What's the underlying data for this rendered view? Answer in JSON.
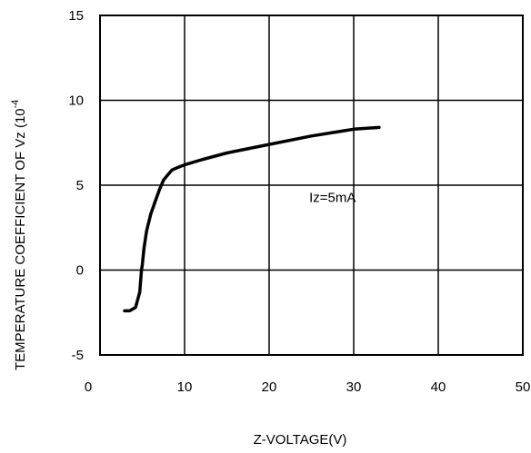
{
  "chart_data": {
    "type": "line",
    "xlabel": "Z-VOLTAGE(V)",
    "ylabel": "TEMPERATURE COEFFICIENT OF Vz (10",
    "ylabel_exponent": "-4",
    "xlim": [
      0,
      50
    ],
    "ylim": [
      -5,
      15
    ],
    "x_ticks": [
      "0",
      "10",
      "20",
      "30",
      "40",
      "50"
    ],
    "y_ticks": [
      "15",
      "10",
      "5",
      "0",
      "-5"
    ],
    "grid": true,
    "series": [
      {
        "x": [
          2.9,
          3.5,
          4.2,
          4.7,
          4.9,
          5.0,
          5.2,
          5.5,
          6.0,
          6.5,
          7.0,
          7.5,
          8.0,
          8.5,
          9.0,
          9.5,
          10,
          12,
          15,
          20,
          25,
          30,
          33
        ],
        "y": [
          -2.4,
          -2.4,
          -2.2,
          -1.3,
          0.0,
          0.3,
          1.3,
          2.3,
          3.3,
          4.0,
          4.7,
          5.3,
          5.6,
          5.9,
          6.0,
          6.1,
          6.2,
          6.5,
          6.9,
          7.4,
          7.9,
          8.3,
          8.4
        ]
      }
    ],
    "annotations": [
      {
        "text": "Iz=5mA",
        "x": 27.5,
        "y": 4.0
      }
    ]
  }
}
